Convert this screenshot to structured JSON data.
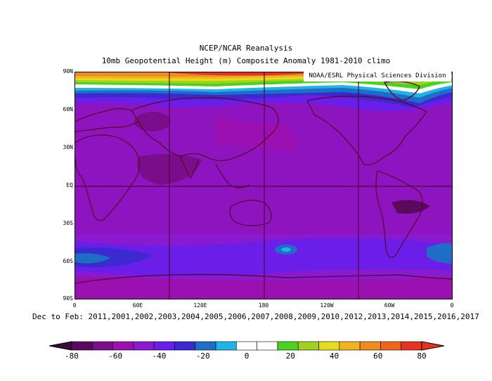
{
  "title": "NCEP/NCAR Reanalysis",
  "subtitle": "10mb Geopotential Height (m) Composite Anomaly 1981-2010 climo",
  "credit": "NOAA/ESRL Physical Sciences Division",
  "period": "Dec to Feb: 2011,2001,2002,2003,2004,2005,2006,2007,2008,2009,2010,2012,2013,2014,2015,2016,2017",
  "lat_labels": [
    "90N",
    "60N",
    "30N",
    "EQ",
    "30S",
    "60S",
    "90S"
  ],
  "lon_labels": [
    "0",
    "60E",
    "120E",
    "180",
    "120W",
    "60W",
    "0"
  ],
  "colorbar": {
    "labels": [
      "-80",
      "-60",
      "-40",
      "-20",
      "0",
      "20",
      "40",
      "60",
      "80"
    ],
    "colors": [
      "#5a0a5a",
      "#7a0e8a",
      "#9a10b0",
      "#8a1ad0",
      "#6a1ee8",
      "#3a2ad0",
      "#1e6ec8",
      "#1eb4e6",
      "#ffffff",
      "#ffffff",
      "#4ad21e",
      "#a0d21e",
      "#e6dc1e",
      "#f0b41e",
      "#f08c1e",
      "#f0641e",
      "#e6321e"
    ]
  }
}
